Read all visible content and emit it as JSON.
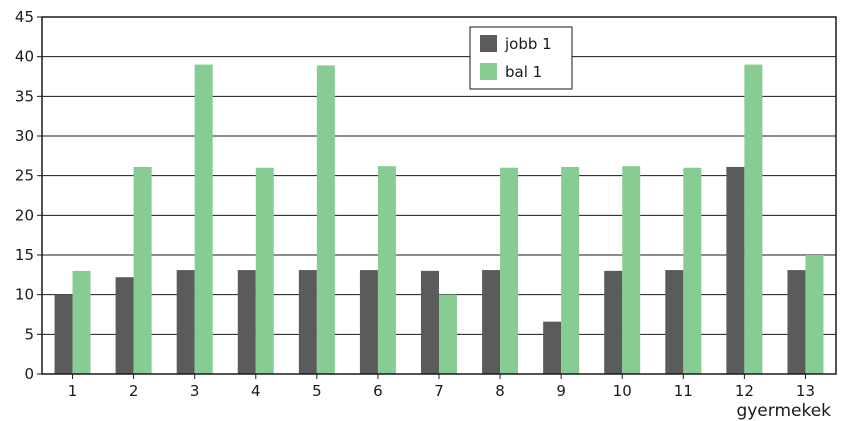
{
  "chart_data": {
    "type": "bar",
    "categories": [
      "1",
      "2",
      "3",
      "4",
      "5",
      "6",
      "7",
      "8",
      "9",
      "10",
      "11",
      "12",
      "13"
    ],
    "series": [
      {
        "name": "jobb 1",
        "color": "#595c5b",
        "values": [
          10,
          12.2,
          13.1,
          13.1,
          13.1,
          13.1,
          13,
          13.1,
          6.6,
          13,
          13.1,
          26.1,
          13.1
        ]
      },
      {
        "name": "bal 1",
        "color": "#86cc93",
        "values": [
          13,
          26.1,
          39,
          26,
          38.9,
          26.2,
          10,
          26,
          26.1,
          26.2,
          26,
          39,
          15
        ]
      }
    ],
    "xlabel": "gyermekek",
    "ylabel": "",
    "ylim": [
      0,
      45
    ],
    "yticks": [
      0,
      5,
      10,
      15,
      20,
      25,
      30,
      35,
      40,
      45
    ],
    "grid": true,
    "legend_position": "top-center"
  }
}
